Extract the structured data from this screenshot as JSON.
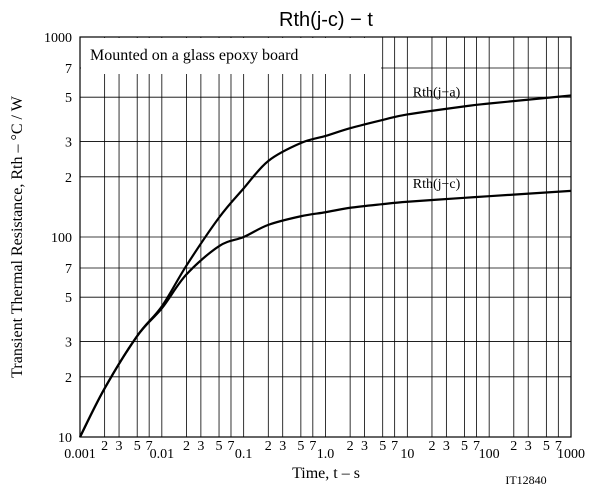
{
  "chart_data": {
    "type": "line",
    "title": "Rth(j-c)  −  t",
    "xlabel": "Time, t  –  s",
    "ylabel": "Transient Thermal Resistance, Rth  –  °C / W",
    "annotation": "Mounted on a glass epoxy board",
    "figure_id": "IT12840",
    "log_x": true,
    "log_y": true,
    "grid": true,
    "color": "#000000",
    "x": [
      0.001,
      0.002,
      0.005,
      0.01,
      0.02,
      0.05,
      0.1,
      0.2,
      0.5,
      1,
      2,
      5,
      10,
      50,
      100,
      1000
    ],
    "series": [
      {
        "name": "Rth(j−a)",
        "color": "#000000",
        "values": [
          10,
          17.5,
          32,
          45,
          72,
          125,
          175,
          240,
          295,
          320,
          350,
          385,
          410,
          450,
          465,
          510
        ]
      },
      {
        "name": "Rth(j−c)",
        "color": "#000000",
        "values": [
          10,
          17.5,
          32,
          44,
          65,
          90,
          100,
          115,
          127,
          133,
          140,
          146,
          150,
          157,
          160,
          170
        ]
      }
    ],
    "xlim": [
      0.001,
      1000
    ],
    "ylim": [
      10,
      1000
    ],
    "xticks": [
      0.001,
      {
        "value": 0.002,
        "label": "2"
      },
      {
        "value": 0.003,
        "label": "3"
      },
      {
        "value": 0.005,
        "label": "5"
      },
      {
        "value": 0.007,
        "label": "7"
      },
      0.01,
      {
        "value": 0.02,
        "label": "2"
      },
      {
        "value": 0.03,
        "label": "3"
      },
      {
        "value": 0.05,
        "label": "5"
      },
      {
        "value": 0.07,
        "label": "7"
      },
      0.1,
      {
        "value": 0.2,
        "label": "2"
      },
      {
        "value": 0.3,
        "label": "3"
      },
      {
        "value": 0.5,
        "label": "5"
      },
      {
        "value": 0.7,
        "label": "7"
      },
      {
        "value": 1,
        "label": "1.0"
      },
      {
        "value": 2,
        "label": "2"
      },
      {
        "value": 3,
        "label": "3"
      },
      {
        "value": 5,
        "label": "5"
      },
      {
        "value": 7,
        "label": "7"
      },
      10,
      {
        "value": 20,
        "label": "2"
      },
      {
        "value": 30,
        "label": "3"
      },
      {
        "value": 50,
        "label": "5"
      },
      {
        "value": 70,
        "label": "7"
      },
      100,
      {
        "value": 200,
        "label": "2"
      },
      {
        "value": 300,
        "label": "3"
      },
      {
        "value": 500,
        "label": "5"
      },
      {
        "value": 700,
        "label": "7"
      },
      1000
    ],
    "yticks": [
      10,
      {
        "value": 20,
        "label": "2"
      },
      {
        "value": 30,
        "label": "3"
      },
      {
        "value": 50,
        "label": "5"
      },
      {
        "value": 70,
        "label": "7"
      },
      100,
      {
        "value": 200,
        "label": "2"
      },
      {
        "value": 300,
        "label": "3"
      },
      {
        "value": 500,
        "label": "5"
      },
      {
        "value": 700,
        "label": "7"
      },
      1000
    ]
  }
}
